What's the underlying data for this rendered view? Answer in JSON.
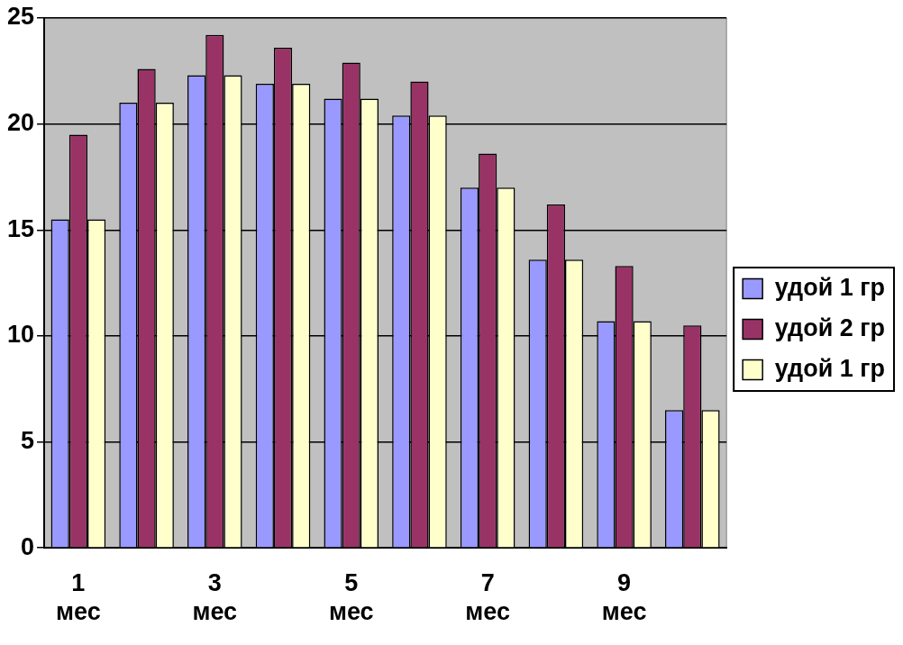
{
  "chart_data": {
    "type": "bar",
    "categories": [
      "1 мес",
      null,
      "3 мес",
      null,
      "5 мес",
      null,
      "7 мес",
      null,
      "9 мес",
      null
    ],
    "series": [
      {
        "name": "удой 1 гр",
        "color": "#9999ff",
        "values": [
          15.5,
          21.0,
          22.3,
          21.9,
          21.2,
          20.4,
          17.0,
          13.6,
          10.7,
          6.5
        ]
      },
      {
        "name": "удой 2 гр",
        "color": "#993366",
        "values": [
          19.5,
          22.6,
          24.2,
          23.6,
          22.9,
          22.0,
          18.6,
          16.2,
          13.3,
          10.5
        ]
      },
      {
        "name": "удой 1 гр",
        "color": "#ffffcc",
        "values": [
          15.5,
          21.0,
          22.3,
          21.9,
          21.2,
          20.4,
          17.0,
          13.6,
          10.7,
          6.5
        ]
      }
    ],
    "ylim": [
      0,
      25
    ],
    "yticks": [
      0,
      5,
      10,
      15,
      20,
      25
    ],
    "grid": "y",
    "legend": "right"
  }
}
